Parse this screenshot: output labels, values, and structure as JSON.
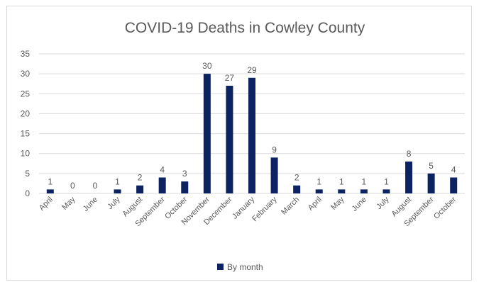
{
  "colors": {
    "bar": "#0d2260",
    "grid": "#d9d9d9",
    "axis_text": "#595959",
    "title_text": "#595959",
    "background": "#ffffff"
  },
  "chart_data": {
    "type": "bar",
    "title": "COVID-19 Deaths in Cowley County",
    "xlabel": "",
    "ylabel": "",
    "ylim": [
      0,
      35
    ],
    "yticks": [
      0,
      5,
      10,
      15,
      20,
      25,
      30,
      35
    ],
    "grid": true,
    "legend_position": "bottom",
    "categories": [
      "April",
      "May",
      "June",
      "July",
      "August",
      "September",
      "October",
      "November",
      "December",
      "January",
      "February",
      "March",
      "April",
      "May",
      "June",
      "July",
      "August",
      "September",
      "October"
    ],
    "series": [
      {
        "name": "By month",
        "values": [
          1,
          0,
          0,
          1,
          2,
          4,
          3,
          30,
          27,
          29,
          9,
          2,
          1,
          1,
          1,
          1,
          8,
          5,
          4
        ]
      }
    ]
  }
}
